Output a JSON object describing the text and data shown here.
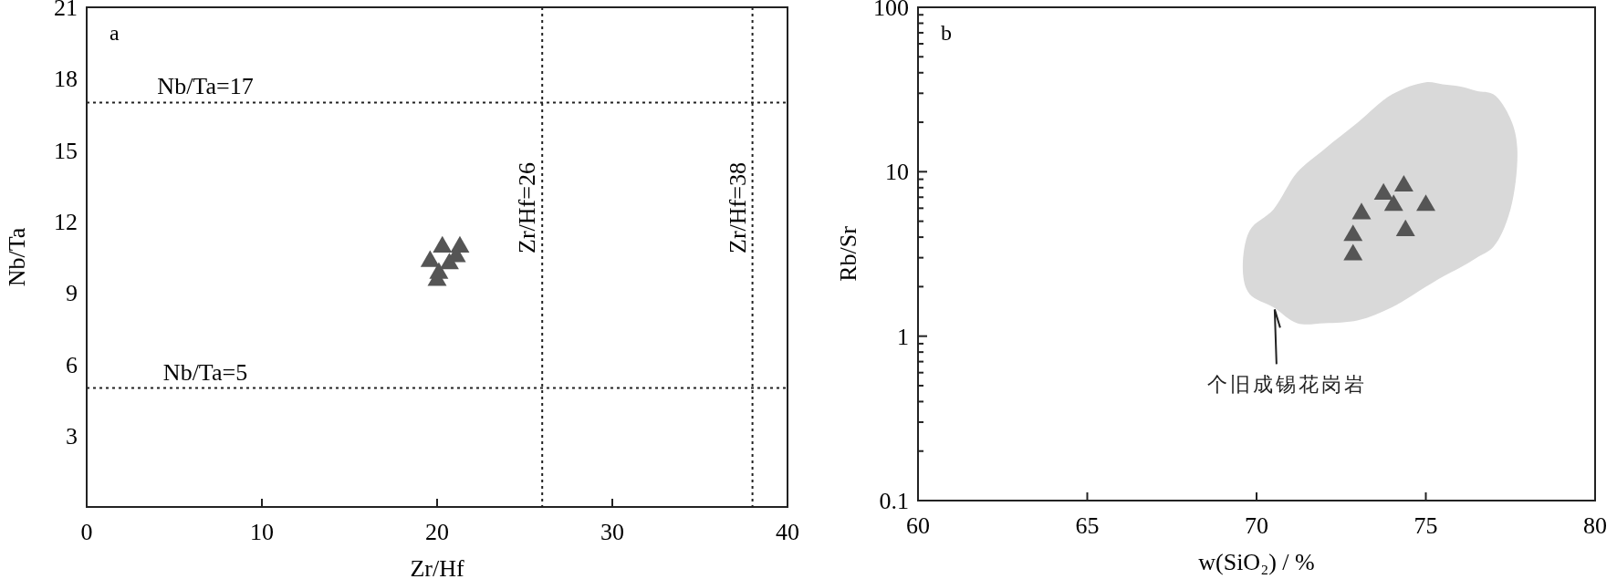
{
  "chart_data": [
    {
      "type": "scatter",
      "xlabel": "Zr/Hf",
      "ylabel": "Nb/Ta",
      "xlim": [
        0,
        40
      ],
      "ylim": [
        0,
        21
      ],
      "xticks": [
        0,
        10,
        20,
        30,
        40
      ],
      "yticks": [
        3,
        6,
        9,
        12,
        15,
        18,
        21
      ],
      "marker": "triangle",
      "grid": false,
      "series": [
        {
          "color": "#555555",
          "x": [
            19.6,
            20.3,
            21.3,
            20.1,
            20.7,
            20.0,
            21.1
          ],
          "values": [
            10.4,
            11.0,
            11.0,
            9.9,
            10.3,
            9.6,
            10.6
          ]
        }
      ],
      "ref_lines": [
        {
          "axis": "y",
          "value": 17,
          "label": "Nb/Ta=17",
          "line_style": "dotted"
        },
        {
          "axis": "y",
          "value": 5,
          "label": "Nb/Ta=5",
          "line_style": "dotted"
        },
        {
          "axis": "x",
          "value": 26,
          "label": "Zr/Hf=26",
          "line_style": "dotted"
        },
        {
          "axis": "x",
          "value": 38,
          "label": "Zr/Hf=38",
          "line_style": "dotted"
        }
      ],
      "annotations": [
        "a"
      ]
    },
    {
      "type": "scatter",
      "xlabel": "w(SiO₂) / %",
      "ylabel": "Rb/Sr",
      "xlim": [
        60,
        80
      ],
      "ylim": [
        0.1,
        100
      ],
      "log": "y",
      "xticks": [
        60,
        65,
        70,
        75,
        80
      ],
      "yticks": [
        0.1,
        {
          "value": 0.2,
          "label": null
        },
        {
          "value": 0.3,
          "label": null
        },
        {
          "value": 0.4,
          "label": null
        },
        {
          "value": 0.5,
          "label": null
        },
        {
          "value": 0.6,
          "label": null
        },
        {
          "value": 0.7,
          "label": null
        },
        {
          "value": 0.8,
          "label": null
        },
        {
          "value": 0.9,
          "label": null
        },
        1,
        {
          "value": 2,
          "label": null
        },
        {
          "value": 3,
          "label": null
        },
        {
          "value": 4,
          "label": null
        },
        {
          "value": 5,
          "label": null
        },
        {
          "value": 6,
          "label": null
        },
        {
          "value": 7,
          "label": null
        },
        {
          "value": 8,
          "label": null
        },
        {
          "value": 9,
          "label": null
        },
        10,
        {
          "value": 20,
          "label": null
        },
        {
          "value": 30,
          "label": null
        },
        {
          "value": 40,
          "label": null
        },
        {
          "value": 50,
          "label": null
        },
        {
          "value": 60,
          "label": null
        },
        {
          "value": 70,
          "label": null
        },
        {
          "value": 80,
          "label": null
        },
        {
          "value": 90,
          "label": null
        },
        100
      ],
      "marker": "triangle",
      "grid": false,
      "series": [
        {
          "type": "area",
          "marker": "none",
          "name": "个旧成锡花岗岩",
          "color": "#d9d9d9",
          "x": [
            69.6,
            69.8,
            70.5,
            71.2,
            72,
            73,
            74,
            75,
            75.5,
            76,
            76.5,
            77,
            77.5,
            77.7,
            77.5,
            77,
            76.5,
            76,
            75.5,
            75,
            74,
            73,
            72,
            71.2,
            70.5,
            69.8
          ],
          "values": [
            2.4,
            4.4,
            5.9,
            9.9,
            13.7,
            20,
            29.5,
            35,
            34,
            33,
            31,
            29.5,
            21,
            14,
            5.9,
            3.5,
            3.0,
            2.6,
            2.3,
            2.0,
            1.5,
            1.25,
            1.2,
            1.2,
            1.5,
            1.8
          ]
        },
        {
          "color": "#555555",
          "x": [
            73.1,
            72.85,
            72.85,
            73.75,
            74.35,
            74.05,
            75.0,
            74.4
          ],
          "values": [
            5.7,
            4.2,
            3.2,
            7.5,
            8.4,
            6.4,
            6.4,
            4.5
          ]
        }
      ],
      "annotations": [
        "b"
      ]
    }
  ]
}
